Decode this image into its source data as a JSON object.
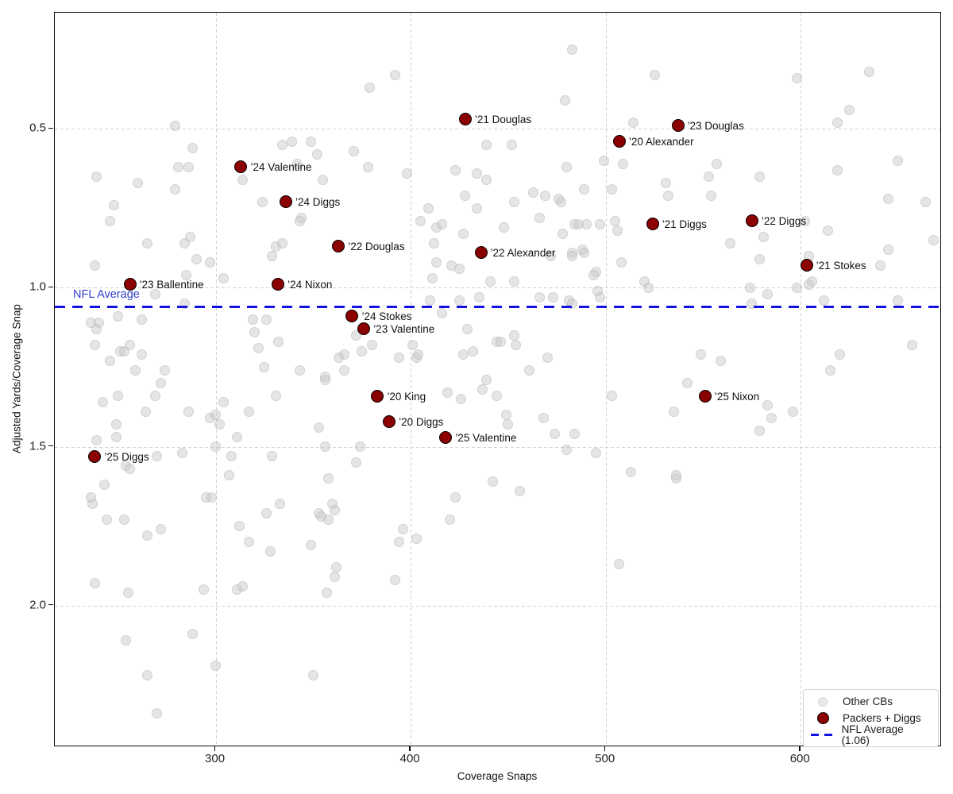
{
  "chart_data": {
    "type": "scatter",
    "xlabel": "Coverage Snaps",
    "ylabel": "Adjusted Yards/Coverage Snap",
    "xlim": [
      217.5,
      672.4
    ],
    "ylim": [
      0.134,
      2.446
    ],
    "y_axis_inverted": true,
    "grid": true,
    "x_ticks": [
      {
        "value": 300,
        "label": "300"
      },
      {
        "value": 400,
        "label": "400"
      },
      {
        "value": 500,
        "label": "500"
      },
      {
        "value": 600,
        "label": "600"
      }
    ],
    "y_ticks": [
      {
        "value": 0.5,
        "label": "0.5"
      },
      {
        "value": 1.0,
        "label": "1.0"
      },
      {
        "value": 1.5,
        "label": "1.5"
      },
      {
        "value": 2.0,
        "label": "2.0"
      }
    ],
    "nfl_line": {
      "value": 1.06,
      "label": "NFL Average",
      "color": "#1111e0"
    },
    "legend": {
      "position": "lower right",
      "items": [
        {
          "label": "Other CBs",
          "swatch": "gray-dot"
        },
        {
          "label": "Packers + Diggs",
          "swatch": "darkred-dot"
        },
        {
          "label": "NFL Average (1.06)",
          "swatch": "blue-dashed-line"
        }
      ]
    },
    "colors": {
      "other": "#e3e3e3",
      "packers": "#8b0000",
      "nfl": "#1111e0"
    },
    "series": [
      {
        "name": "Packers + Diggs",
        "points": [
          {
            "label": "’21 Douglas",
            "x": 428,
            "y": 0.47
          },
          {
            "label": "’23 Douglas",
            "x": 537,
            "y": 0.49
          },
          {
            "label": "’20 Alexander",
            "x": 507,
            "y": 0.54
          },
          {
            "label": "’24 Valentine",
            "x": 313,
            "y": 0.62
          },
          {
            "label": "’24 Diggs",
            "x": 336,
            "y": 0.73
          },
          {
            "label": "’22 Diggs",
            "x": 575,
            "y": 0.79
          },
          {
            "label": "’21 Diggs",
            "x": 524,
            "y": 0.8
          },
          {
            "label": "’22 Douglas",
            "x": 363,
            "y": 0.87
          },
          {
            "label": "’22 Alexander",
            "x": 436,
            "y": 0.89
          },
          {
            "label": "’21 Stokes",
            "x": 603,
            "y": 0.93
          },
          {
            "label": "’23 Ballentine",
            "x": 256,
            "y": 0.99
          },
          {
            "label": "’24 Nixon",
            "x": 332,
            "y": 0.99
          },
          {
            "label": "’24 Stokes",
            "x": 370,
            "y": 1.09
          },
          {
            "label": "’23 Valentine",
            "x": 376,
            "y": 1.13
          },
          {
            "label": "’20 King",
            "x": 383,
            "y": 1.34
          },
          {
            "label": "’25 Nixon",
            "x": 551,
            "y": 1.34
          },
          {
            "label": "’20 Diggs",
            "x": 389,
            "y": 1.42
          },
          {
            "label": "’25 Valentine",
            "x": 418,
            "y": 1.47
          },
          {
            "label": "’25 Diggs",
            "x": 238,
            "y": 1.53
          }
        ]
      },
      {
        "name": "Other CBs",
        "points": [
          [
            392,
            0.33
          ],
          [
            379,
            0.37
          ],
          [
            483,
            0.25
          ],
          [
            525,
            0.33
          ],
          [
            598,
            0.34
          ],
          [
            635,
            0.32
          ],
          [
            625,
            0.44
          ],
          [
            479,
            0.41
          ],
          [
            514,
            0.48
          ],
          [
            619,
            0.48
          ],
          [
            279,
            0.49
          ],
          [
            288,
            0.56
          ],
          [
            339,
            0.54
          ],
          [
            349,
            0.54
          ],
          [
            352,
            0.58
          ],
          [
            371,
            0.57
          ],
          [
            342,
            0.61
          ],
          [
            439,
            0.55
          ],
          [
            334,
            0.55
          ],
          [
            239,
            0.65
          ],
          [
            260,
            0.67
          ],
          [
            279,
            0.69
          ],
          [
            281,
            0.62
          ],
          [
            286,
            0.62
          ],
          [
            248,
            0.74
          ],
          [
            314,
            0.66
          ],
          [
            324,
            0.73
          ],
          [
            355,
            0.66
          ],
          [
            378,
            0.62
          ],
          [
            398,
            0.64
          ],
          [
            423,
            0.63
          ],
          [
            434,
            0.64
          ],
          [
            439,
            0.66
          ],
          [
            452,
            0.55
          ],
          [
            463,
            0.7
          ],
          [
            469,
            0.71
          ],
          [
            428,
            0.71
          ],
          [
            434,
            0.75
          ],
          [
            409,
            0.75
          ],
          [
            509,
            0.61
          ],
          [
            499,
            0.6
          ],
          [
            480,
            0.62
          ],
          [
            489,
            0.69
          ],
          [
            503,
            0.69
          ],
          [
            476,
            0.72
          ],
          [
            531,
            0.67
          ],
          [
            532,
            0.71
          ],
          [
            553,
            0.65
          ],
          [
            554,
            0.71
          ],
          [
            557,
            0.61
          ],
          [
            579,
            0.65
          ],
          [
            619,
            0.63
          ],
          [
            650,
            0.6
          ],
          [
            645,
            0.72
          ],
          [
            664,
            0.73
          ],
          [
            246,
            0.79
          ],
          [
            265,
            0.86
          ],
          [
            284,
            0.86
          ],
          [
            287,
            0.84
          ],
          [
            290,
            0.91
          ],
          [
            297,
            0.92
          ],
          [
            238,
            0.93
          ],
          [
            285,
            0.96
          ],
          [
            304,
            0.97
          ],
          [
            269,
            1.02
          ],
          [
            284,
            1.05
          ],
          [
            344,
            0.78
          ],
          [
            331,
            0.87
          ],
          [
            329,
            0.9
          ],
          [
            334,
            0.86
          ],
          [
            343,
            0.79
          ],
          [
            405,
            0.79
          ],
          [
            413,
            0.81
          ],
          [
            416,
            0.8
          ],
          [
            427,
            0.83
          ],
          [
            448,
            0.81
          ],
          [
            453,
            0.73
          ],
          [
            466,
            0.78
          ],
          [
            477,
            0.73
          ],
          [
            478,
            0.83
          ],
          [
            484,
            0.8
          ],
          [
            412,
            0.86
          ],
          [
            413,
            0.92
          ],
          [
            411,
            0.97
          ],
          [
            421,
            0.93
          ],
          [
            425,
            0.94
          ],
          [
            441,
            0.98
          ],
          [
            453,
            0.98
          ],
          [
            472,
            0.9
          ],
          [
            483,
            0.89
          ],
          [
            489,
            0.89
          ],
          [
            495,
            0.95
          ],
          [
            466,
            1.03
          ],
          [
            473,
            1.03
          ],
          [
            481,
            1.04
          ],
          [
            410,
            1.04
          ],
          [
            425,
            1.04
          ],
          [
            435,
            1.03
          ],
          [
            486,
            0.8
          ],
          [
            490,
            0.8
          ],
          [
            497,
            0.8
          ],
          [
            505,
            0.79
          ],
          [
            506,
            0.82
          ],
          [
            488,
            0.88
          ],
          [
            483,
            0.9
          ],
          [
            494,
            0.96
          ],
          [
            508,
            0.92
          ],
          [
            520,
            0.98
          ],
          [
            522,
            1.0
          ],
          [
            602,
            0.79
          ],
          [
            614,
            0.82
          ],
          [
            645,
            0.88
          ],
          [
            604,
            0.9
          ],
          [
            606,
            0.98
          ],
          [
            579,
            0.91
          ],
          [
            564,
            0.86
          ],
          [
            581,
            0.84
          ],
          [
            604,
            0.99
          ],
          [
            574,
            1.0
          ],
          [
            641,
            0.93
          ],
          [
            668,
            0.85
          ],
          [
            598,
            1.0
          ],
          [
            575,
            1.05
          ],
          [
            583,
            1.02
          ],
          [
            612,
            1.04
          ],
          [
            650,
            1.04
          ],
          [
            483,
            1.05
          ],
          [
            496,
            1.01
          ],
          [
            497,
            1.03
          ],
          [
            416,
            1.08
          ],
          [
            250,
            1.09
          ],
          [
            262,
            1.1
          ],
          [
            238,
            1.18
          ],
          [
            251,
            1.2
          ],
          [
            253,
            1.2
          ],
          [
            256,
            1.18
          ],
          [
            262,
            1.21
          ],
          [
            246,
            1.23
          ],
          [
            259,
            1.26
          ],
          [
            274,
            1.26
          ],
          [
            272,
            1.3
          ],
          [
            269,
            1.34
          ],
          [
            242,
            1.36
          ],
          [
            250,
            1.34
          ],
          [
            264,
            1.39
          ],
          [
            249,
            1.43
          ],
          [
            239,
            1.48
          ],
          [
            249,
            1.47
          ],
          [
            286,
            1.39
          ],
          [
            297,
            1.41
          ],
          [
            300,
            1.4
          ],
          [
            236,
            1.11
          ],
          [
            240,
            1.11
          ],
          [
            239,
            1.13
          ],
          [
            319,
            1.1
          ],
          [
            326,
            1.1
          ],
          [
            320,
            1.14
          ],
          [
            332,
            1.17
          ],
          [
            322,
            1.19
          ],
          [
            325,
            1.25
          ],
          [
            343,
            1.26
          ],
          [
            366,
            1.21
          ],
          [
            331,
            1.34
          ],
          [
            304,
            1.36
          ],
          [
            317,
            1.39
          ],
          [
            302,
            1.43
          ],
          [
            311,
            1.47
          ],
          [
            353,
            1.44
          ],
          [
            300,
            1.5
          ],
          [
            356,
            1.5
          ],
          [
            374,
            1.5
          ],
          [
            356,
            1.29
          ],
          [
            372,
            1.15
          ],
          [
            363,
            1.22
          ],
          [
            366,
            1.26
          ],
          [
            356,
            1.28
          ],
          [
            375,
            1.2
          ],
          [
            380,
            1.18
          ],
          [
            394,
            1.22
          ],
          [
            403,
            1.22
          ],
          [
            404,
            1.21
          ],
          [
            401,
            1.18
          ],
          [
            429,
            1.13
          ],
          [
            432,
            1.2
          ],
          [
            427,
            1.21
          ],
          [
            439,
            1.29
          ],
          [
            444,
            1.17
          ],
          [
            446,
            1.17
          ],
          [
            453,
            1.15
          ],
          [
            454,
            1.18
          ],
          [
            461,
            1.26
          ],
          [
            470,
            1.22
          ],
          [
            437,
            1.32
          ],
          [
            444,
            1.34
          ],
          [
            419,
            1.33
          ],
          [
            426,
            1.35
          ],
          [
            449,
            1.4
          ],
          [
            450,
            1.43
          ],
          [
            468,
            1.41
          ],
          [
            474,
            1.46
          ],
          [
            484,
            1.46
          ],
          [
            503,
            1.34
          ],
          [
            549,
            1.21
          ],
          [
            559,
            1.23
          ],
          [
            542,
            1.3
          ],
          [
            535,
            1.39
          ],
          [
            583,
            1.37
          ],
          [
            585,
            1.41
          ],
          [
            596,
            1.39
          ],
          [
            579,
            1.45
          ],
          [
            615,
            1.26
          ],
          [
            620,
            1.21
          ],
          [
            657,
            1.18
          ],
          [
            495,
            1.52
          ],
          [
            270,
            1.53
          ],
          [
            283,
            1.52
          ],
          [
            254,
            1.56
          ],
          [
            256,
            1.57
          ],
          [
            243,
            1.62
          ],
          [
            237,
            1.68
          ],
          [
            244,
            1.73
          ],
          [
            253,
            1.73
          ],
          [
            265,
            1.78
          ],
          [
            272,
            1.76
          ],
          [
            295,
            1.66
          ],
          [
            298,
            1.66
          ],
          [
            308,
            1.53
          ],
          [
            329,
            1.53
          ],
          [
            372,
            1.55
          ],
          [
            307,
            1.59
          ],
          [
            358,
            1.6
          ],
          [
            236,
            1.66
          ],
          [
            333,
            1.68
          ],
          [
            360,
            1.68
          ],
          [
            353,
            1.71
          ],
          [
            326,
            1.71
          ],
          [
            312,
            1.75
          ],
          [
            317,
            1.8
          ],
          [
            328,
            1.83
          ],
          [
            349,
            1.81
          ],
          [
            362,
            1.88
          ],
          [
            361,
            1.7
          ],
          [
            354,
            1.72
          ],
          [
            358,
            1.73
          ],
          [
            442,
            1.61
          ],
          [
            456,
            1.64
          ],
          [
            423,
            1.66
          ],
          [
            420,
            1.73
          ],
          [
            396,
            1.76
          ],
          [
            403,
            1.79
          ],
          [
            394,
            1.8
          ],
          [
            361,
            1.91
          ],
          [
            392,
            1.92
          ],
          [
            357,
            1.96
          ],
          [
            507,
            1.87
          ],
          [
            536,
            1.6
          ],
          [
            513,
            1.58
          ],
          [
            536,
            1.59
          ],
          [
            238,
            1.93
          ],
          [
            255,
            1.96
          ],
          [
            294,
            1.95
          ],
          [
            311,
            1.95
          ],
          [
            314,
            1.94
          ],
          [
            480,
            1.51
          ],
          [
            254,
            2.11
          ],
          [
            288,
            2.09
          ],
          [
            265,
            2.22
          ],
          [
            300,
            2.19
          ],
          [
            350,
            2.22
          ],
          [
            270,
            2.34
          ]
        ]
      }
    ]
  }
}
